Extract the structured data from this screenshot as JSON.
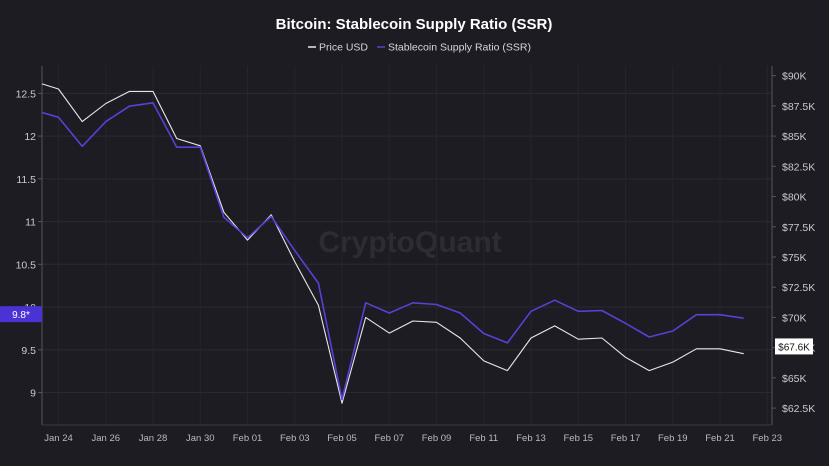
{
  "chart_data": {
    "type": "line",
    "title": "Bitcoin: Stablecoin Supply Ratio (SSR)",
    "watermark": "CryptoQuant",
    "legend": [
      "Price USD",
      "Stablecoin Supply Ratio (SSR)"
    ],
    "x_ticks": [
      "Jan 24",
      "Jan 26",
      "Jan 28",
      "Jan 30",
      "Feb 01",
      "Feb 03",
      "Feb 05",
      "Feb 07",
      "Feb 09",
      "Feb 11",
      "Feb 13",
      "Feb 15",
      "Feb 17",
      "Feb 19",
      "Feb 21",
      "Feb 23"
    ],
    "x_range": [
      23.3,
      54.2
    ],
    "left_axis": {
      "ticks": [
        9,
        9.5,
        10,
        10.5,
        11,
        11.5,
        12,
        12.5
      ],
      "tick_labels": [
        "9",
        "9.5",
        "10",
        "10.5",
        "11",
        "11.5",
        "12",
        "12.5"
      ],
      "ylim": [
        8.62,
        12.82
      ]
    },
    "right_axis": {
      "tick_labels": [
        "$62.5K",
        "$65K",
        "$67.5K",
        "$70K",
        "$72.5K",
        "$75K",
        "$77.5K",
        "$80K",
        "$82.5K",
        "$85K",
        "$87.5K",
        "$90K"
      ],
      "ticks": [
        62500,
        65000,
        67500,
        70000,
        72500,
        75000,
        77500,
        80000,
        82500,
        85000,
        87500,
        90000
      ],
      "ylim": [
        61100,
        90800
      ]
    },
    "series": [
      {
        "name": "Price USD",
        "color": "#e8e8ec",
        "axis": "right",
        "x": [
          23,
          24,
          25,
          26,
          27,
          28,
          29,
          30,
          31,
          32,
          33,
          34,
          35,
          36,
          37,
          38,
          39,
          40,
          41,
          42,
          43,
          44,
          45,
          46,
          47,
          48,
          49,
          50,
          51,
          52,
          53
        ],
        "values": [
          89500,
          88900,
          86200,
          87700,
          88700,
          88700,
          84800,
          84200,
          78700,
          76400,
          78500,
          74600,
          71000,
          62900,
          70000,
          68700,
          69700,
          69600,
          68300,
          66400,
          65600,
          68300,
          69300,
          68200,
          68300,
          66700,
          65600,
          66300,
          67400,
          67400,
          67000
        ]
      },
      {
        "name": "Stablecoin Supply Ratio (SSR)",
        "color": "#5b3fd6",
        "axis": "left",
        "x": [
          23,
          24,
          25,
          26,
          27,
          28,
          29,
          30,
          31,
          32,
          33,
          34,
          35,
          36,
          37,
          38,
          39,
          40,
          41,
          42,
          43,
          44,
          45,
          46,
          47,
          48,
          49,
          50,
          51,
          52,
          53
        ],
        "values": [
          12.3,
          12.22,
          11.88,
          12.17,
          12.35,
          12.39,
          11.87,
          11.87,
          11.05,
          10.81,
          11.06,
          10.66,
          10.28,
          8.92,
          10.05,
          9.93,
          10.05,
          10.03,
          9.93,
          9.69,
          9.58,
          9.95,
          10.08,
          9.95,
          9.96,
          9.81,
          9.65,
          9.72,
          9.91,
          9.91,
          9.87
        ]
      }
    ],
    "current_value_badges": {
      "left": "9.8*",
      "right": "$67.6K"
    }
  }
}
